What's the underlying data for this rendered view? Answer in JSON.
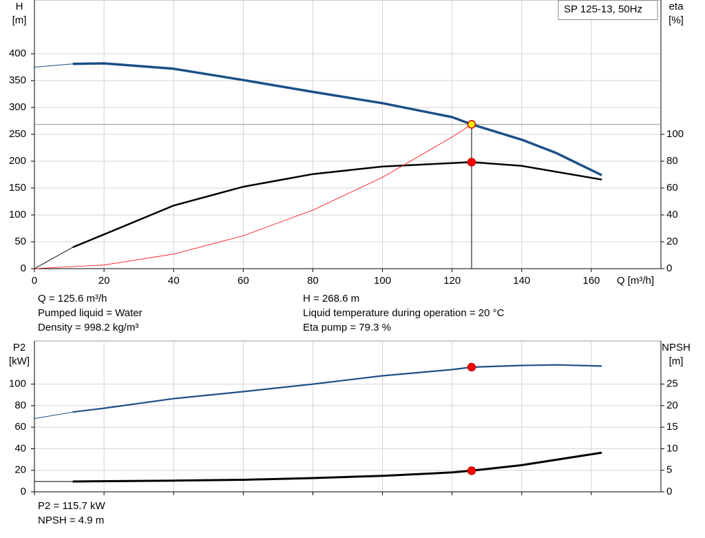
{
  "chart_data": [
    {
      "type": "line",
      "title": "SP 125-13, 50Hz",
      "xlabel": "Q [m³/h]",
      "ylabel": [
        "H",
        "[m]"
      ],
      "y2label": [
        "eta",
        "[%]"
      ],
      "xlim": [
        0,
        180
      ],
      "xticks": [
        0,
        20,
        40,
        60,
        80,
        100,
        120,
        140,
        160
      ],
      "xtick_labels": true,
      "ylim": [
        0,
        500
      ],
      "yticks": [
        0,
        50,
        100,
        150,
        200,
        250,
        300,
        350,
        400
      ],
      "y2lim": [
        0,
        200
      ],
      "y2ticks": [
        0,
        20,
        40,
        60,
        80,
        100
      ],
      "grid": true,
      "series": [
        {
          "color": "#1c4f87",
          "line_width": 1,
          "x": [
            0,
            11
          ],
          "values": [
            375,
            381
          ]
        },
        {
          "color": "#1c4f87",
          "line_width": 3.5,
          "x": [
            11,
            20,
            40,
            60,
            80,
            100,
            120,
            125.6,
            140,
            150,
            163
          ],
          "values": [
            381,
            382,
            372,
            351,
            329,
            308,
            282,
            268.6,
            240,
            215,
            174
          ]
        },
        {
          "color": "#000000",
          "line_width": 1,
          "axis": "y2",
          "x": [
            0,
            11
          ],
          "values": [
            0,
            15.9
          ]
        },
        {
          "color": "#000000",
          "line_width": 2.5,
          "axis": "y2",
          "x": [
            11,
            20,
            40,
            60,
            80,
            100,
            120,
            125.6,
            140,
            163
          ],
          "values": [
            15.9,
            25.5,
            47,
            61,
            70.4,
            76,
            78.6,
            79.3,
            76.5,
            66.3
          ]
        },
        {
          "color": "#ff0000",
          "line_width": 0.8,
          "x": [
            0,
            20,
            40,
            60,
            80,
            100,
            120,
            125.6
          ],
          "values": [
            0,
            6.8,
            27.2,
            61.3,
            109,
            170,
            245,
            268.6
          ]
        },
        {
          "color": "#ffee00",
          "marker": "circle",
          "guides": true,
          "x": [
            125.6
          ],
          "values": [
            268.6
          ]
        },
        {
          "color": "#ff0000",
          "marker": "circle",
          "axis": "y2",
          "x": [
            125.6
          ],
          "values": [
            79.3
          ]
        }
      ],
      "annotations": [
        [
          "Q = 125.6 m³/h",
          "Pumped liquid = Water",
          "Density = 998.2 kg/m³"
        ],
        [
          "H = 268.6 m",
          "Liquid temperature during operation = 20 °C",
          "Eta pump = 79.3 %"
        ]
      ]
    },
    {
      "type": "line",
      "ylabel": [
        "P2",
        "[kW]"
      ],
      "y2label": [
        "NPSH",
        "[m]"
      ],
      "xlim": [
        0,
        180
      ],
      "xticks": [
        0,
        20,
        40,
        60,
        80,
        100,
        120,
        140,
        160
      ],
      "xtick_labels": false,
      "ylim": [
        0,
        140
      ],
      "yticks": [
        0,
        20,
        40,
        60,
        80,
        100
      ],
      "y2lim": [
        0,
        35
      ],
      "y2ticks": [
        0,
        5,
        10,
        15,
        20,
        25
      ],
      "grid": true,
      "series": [
        {
          "color": "#1c4f87",
          "line_width": 1,
          "x": [
            0,
            11
          ],
          "values": [
            68,
            74
          ]
        },
        {
          "color": "#1c4f87",
          "line_width": 2.2,
          "x": [
            11,
            20,
            40,
            60,
            80,
            100,
            120,
            125.6,
            140,
            150,
            163
          ],
          "values": [
            74,
            77.6,
            86.5,
            93,
            100,
            107.7,
            113.5,
            115.7,
            117.3,
            117.8,
            116.7
          ]
        },
        {
          "color": "#000000",
          "line_width": 1,
          "axis": "y2",
          "x": [
            0,
            11
          ],
          "values": [
            2.4,
            2.4
          ]
        },
        {
          "color": "#000000",
          "line_width": 3,
          "axis": "y2",
          "x": [
            11,
            40,
            60,
            80,
            100,
            120,
            125.6,
            140,
            163
          ],
          "values": [
            2.4,
            2.6,
            2.8,
            3.2,
            3.7,
            4.5,
            4.9,
            6.2,
            9.1
          ]
        },
        {
          "color": "#ff0000",
          "marker": "circle",
          "x": [
            125.6
          ],
          "values": [
            115.7
          ]
        },
        {
          "color": "#ff0000",
          "marker": "circle",
          "axis": "y2",
          "x": [
            125.6
          ],
          "values": [
            4.9
          ]
        }
      ],
      "annotations": [
        [
          "P2 = 115.7 kW",
          "NPSH = 4.9 m"
        ]
      ]
    }
  ]
}
